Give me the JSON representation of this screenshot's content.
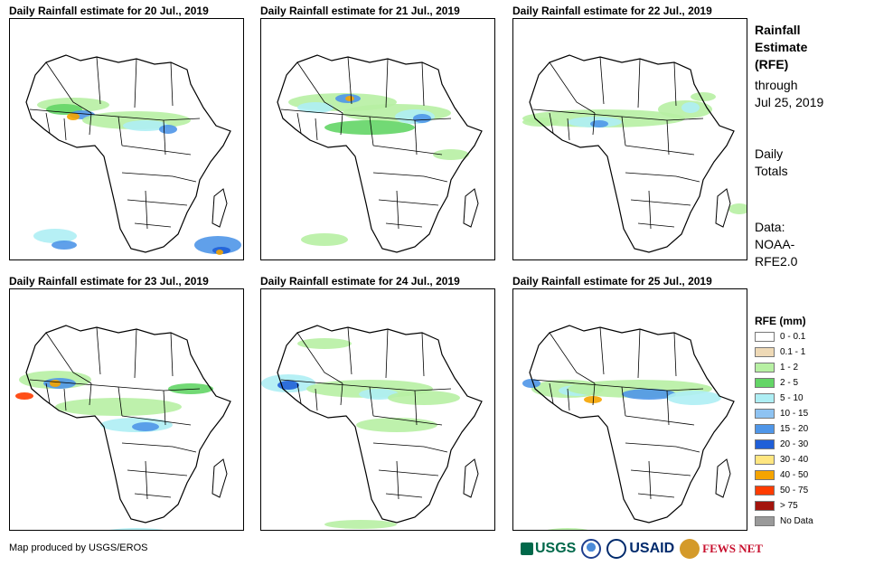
{
  "panels": [
    {
      "title": "Daily Rainfall estimate for 20 Jul., 2019"
    },
    {
      "title": "Daily Rainfall estimate for 21 Jul., 2019"
    },
    {
      "title": "Daily Rainfall estimate for 22 Jul., 2019"
    },
    {
      "title": "Daily Rainfall estimate for 23 Jul., 2019"
    },
    {
      "title": "Daily Rainfall estimate for 24 Jul., 2019"
    },
    {
      "title": "Daily Rainfall estimate for 25 Jul., 2019"
    }
  ],
  "side": {
    "title_lines": [
      "Rainfall",
      "Estimate",
      "(RFE)"
    ],
    "through_lines": [
      "through",
      "Jul 25, 2019"
    ],
    "totals_lines": [
      "Daily",
      "Totals"
    ],
    "data_lines": [
      "Data:",
      "NOAA-",
      "RFE2.0"
    ]
  },
  "legend": {
    "title": "RFE (mm)",
    "items": [
      {
        "label": "0 - 0.1",
        "color": "#ffffff"
      },
      {
        "label": "0.1 - 1",
        "color": "#eed9b6"
      },
      {
        "label": "1 - 2",
        "color": "#b7f0a3"
      },
      {
        "label": "2 - 5",
        "color": "#63d566"
      },
      {
        "label": "5 - 10",
        "color": "#aeeef4"
      },
      {
        "label": "10 - 15",
        "color": "#8ec3f2"
      },
      {
        "label": "15 - 20",
        "color": "#4f96e8"
      },
      {
        "label": "20 - 30",
        "color": "#1f5fd8"
      },
      {
        "label": "30 - 40",
        "color": "#ffe680"
      },
      {
        "label": "40 - 50",
        "color": "#f5a400"
      },
      {
        "label": "50 - 75",
        "color": "#ff3c00"
      },
      {
        "label": "> 75",
        "color": "#a3140c"
      },
      {
        "label": "No Data",
        "color": "#9a9a9a"
      }
    ]
  },
  "credit": "Map produced by USGS/EROS",
  "logos": {
    "usgs": "USGS",
    "usaid": "USAID",
    "fews": "FEWS NET",
    "usgs_icon": "usgs-wave-icon",
    "noaa_icon": "noaa-seal-icon",
    "fews_icon": "fews-globe-icon"
  }
}
